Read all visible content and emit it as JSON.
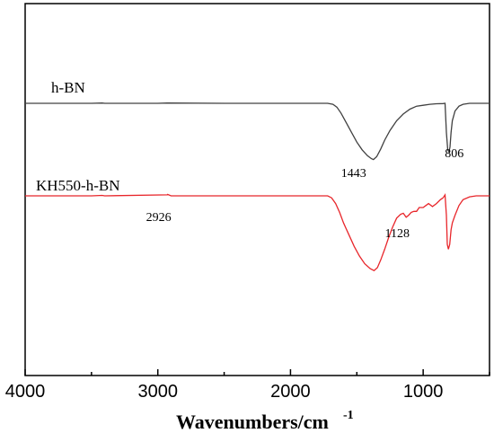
{
  "chart_data": {
    "type": "line",
    "title": "",
    "xlabel": "Wavenumbers/cm",
    "xlabel_superscript": "-1",
    "ylabel": "",
    "xlim": [
      4000,
      500
    ],
    "x_ticks": [
      4000,
      3000,
      2000,
      1000
    ],
    "x_tick_labels": [
      "4000",
      "3000",
      "2000",
      "1000"
    ],
    "y_axis_ticks_shown": false,
    "grid": false,
    "series": [
      {
        "name": "h-BN",
        "color": "#404040",
        "baseline": 0,
        "points": [
          [
            4000,
            0
          ],
          [
            3500,
            0
          ],
          [
            3420,
            0.3
          ],
          [
            3400,
            0
          ],
          [
            3000,
            0
          ],
          [
            2930,
            0.3
          ],
          [
            2500,
            0
          ],
          [
            2300,
            0
          ],
          [
            1800,
            0
          ],
          [
            1720,
            0
          ],
          [
            1680,
            -1
          ],
          [
            1650,
            -4
          ],
          [
            1620,
            -10
          ],
          [
            1580,
            -20
          ],
          [
            1540,
            -30
          ],
          [
            1500,
            -40
          ],
          [
            1460,
            -48
          ],
          [
            1420,
            -54
          ],
          [
            1390,
            -57
          ],
          [
            1375,
            -58
          ],
          [
            1350,
            -55
          ],
          [
            1320,
            -47
          ],
          [
            1290,
            -38
          ],
          [
            1250,
            -28
          ],
          [
            1200,
            -18
          ],
          [
            1150,
            -11
          ],
          [
            1100,
            -6
          ],
          [
            1050,
            -3
          ],
          [
            1000,
            -2
          ],
          [
            950,
            -1
          ],
          [
            900,
            -0.5
          ],
          [
            850,
            -0.3
          ],
          [
            835,
            0
          ],
          [
            825,
            -30
          ],
          [
            815,
            -48
          ],
          [
            805,
            -50
          ],
          [
            798,
            -45
          ],
          [
            790,
            -30
          ],
          [
            780,
            -18
          ],
          [
            760,
            -8
          ],
          [
            730,
            -3
          ],
          [
            700,
            -1
          ],
          [
            650,
            0
          ],
          [
            600,
            0
          ],
          [
            500,
            0
          ]
        ]
      },
      {
        "name": "KH550-h-BN",
        "color": "#e8262b",
        "baseline": -100,
        "points": [
          [
            4000,
            -100
          ],
          [
            3500,
            -100
          ],
          [
            3420,
            -99.5
          ],
          [
            3400,
            -100
          ],
          [
            2930,
            -99
          ],
          [
            2926,
            -98.5
          ],
          [
            2900,
            -100
          ],
          [
            2500,
            -100
          ],
          [
            2300,
            -100
          ],
          [
            1800,
            -100
          ],
          [
            1720,
            -100
          ],
          [
            1690,
            -102
          ],
          [
            1660,
            -108
          ],
          [
            1630,
            -117
          ],
          [
            1600,
            -128
          ],
          [
            1560,
            -140
          ],
          [
            1520,
            -152
          ],
          [
            1480,
            -162
          ],
          [
            1440,
            -170
          ],
          [
            1400,
            -175
          ],
          [
            1370,
            -177
          ],
          [
            1345,
            -174
          ],
          [
            1320,
            -166
          ],
          [
            1290,
            -155
          ],
          [
            1260,
            -143
          ],
          [
            1230,
            -132
          ],
          [
            1200,
            -123
          ],
          [
            1170,
            -119
          ],
          [
            1150,
            -118
          ],
          [
            1128,
            -122
          ],
          [
            1110,
            -120
          ],
          [
            1090,
            -117
          ],
          [
            1070,
            -116
          ],
          [
            1050,
            -116
          ],
          [
            1030,
            -112
          ],
          [
            1000,
            -112
          ],
          [
            980,
            -110
          ],
          [
            960,
            -108
          ],
          [
            930,
            -111
          ],
          [
            900,
            -108
          ],
          [
            870,
            -104
          ],
          [
            850,
            -102
          ],
          [
            835,
            -99
          ],
          [
            825,
            -120
          ],
          [
            818,
            -150
          ],
          [
            810,
            -155
          ],
          [
            800,
            -150
          ],
          [
            790,
            -135
          ],
          [
            780,
            -128
          ],
          [
            760,
            -120
          ],
          [
            730,
            -110
          ],
          [
            700,
            -104
          ],
          [
            650,
            -101
          ],
          [
            600,
            -100
          ],
          [
            550,
            -100
          ],
          [
            500,
            -100
          ]
        ]
      }
    ],
    "annotations": [
      {
        "text": "1443",
        "x": 1443,
        "y": -62
      },
      {
        "text": "806",
        "x": 806,
        "y": -55
      },
      {
        "text": "2926",
        "x": 2926,
        "y": -102
      },
      {
        "text": "1128",
        "x": 1128,
        "y": -125
      }
    ]
  },
  "labels": {
    "series1": "h-BN",
    "series2": "KH550-h-BN",
    "xlabel": "Wavenumbers/cm",
    "xlabel_sup": "-1"
  }
}
